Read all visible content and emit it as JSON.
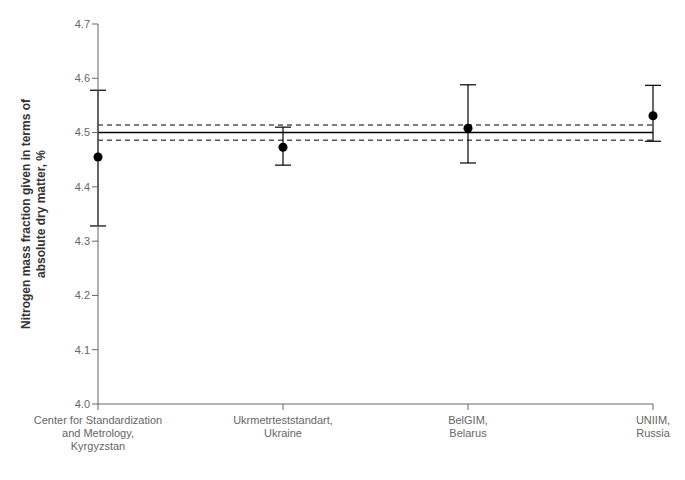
{
  "chart_data": {
    "type": "errorbar",
    "categories": [
      "Center for Standardization\nand Metrology,\nKyrgyzstan",
      "Ukrmetrteststandart,\nUkraine",
      "BelGIM,\nBelarus",
      "UNIIM,\nRussia"
    ],
    "values": [
      4.455,
      4.473,
      4.508,
      4.531
    ],
    "error_upper": [
      4.578,
      4.51,
      4.588,
      4.587
    ],
    "error_lower": [
      4.328,
      4.44,
      4.444,
      4.484
    ],
    "ylabel": "Nitrogen mass fraction given in terms of\nabsolute dry matter, %",
    "color": "#000000",
    "marker": "circle",
    "hlines": [
      {
        "value": 4.5,
        "color": "#000000",
        "line_style": "solid"
      },
      {
        "value": 4.514,
        "color": "#555555",
        "line_style": "dashed"
      },
      {
        "value": 4.486,
        "color": "#555555",
        "line_style": "dashed"
      }
    ],
    "ylim": [
      4.0,
      4.7
    ],
    "yticks": [
      {
        "value": 4.0,
        "label": "4.0"
      },
      4.1,
      4.2,
      4.3,
      4.4,
      4.5,
      4.6,
      4.7
    ],
    "grid": false
  }
}
